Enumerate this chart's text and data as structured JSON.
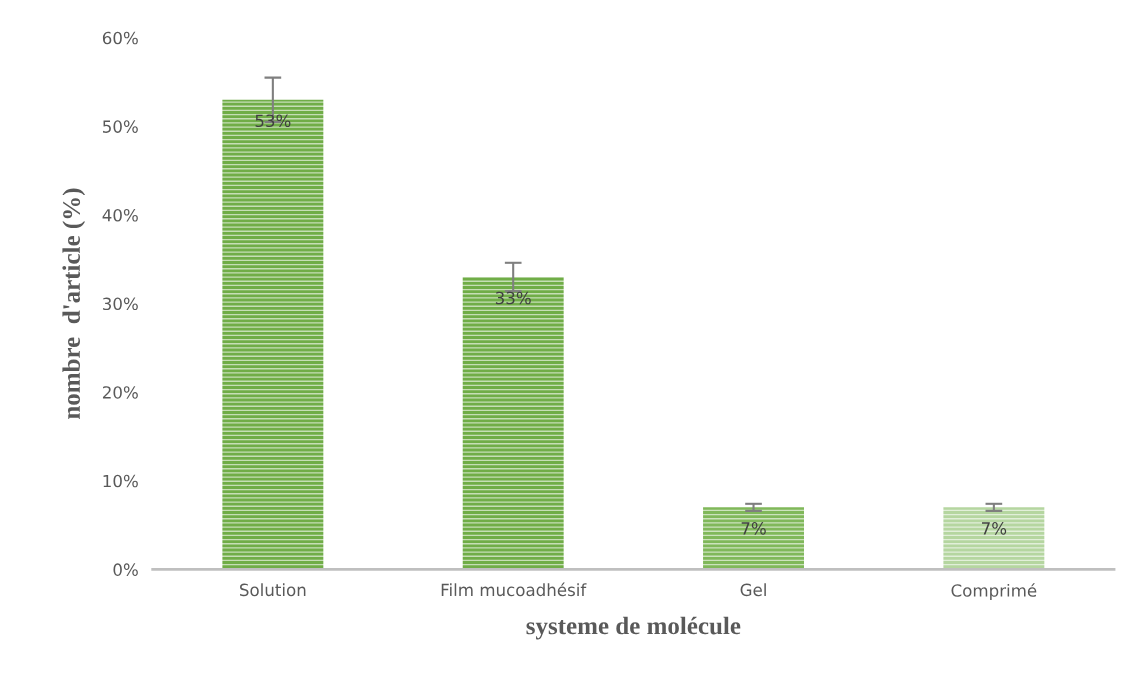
{
  "chart_data": {
    "type": "bar",
    "xlabel": "systeme de molécule",
    "ylabel": "nombre  d'article (%)",
    "categories": [
      "Solution",
      "Film mucoadhésif",
      "Gel",
      "Comprimé"
    ],
    "values": [
      53,
      33,
      7,
      7
    ],
    "errors": [
      2.5,
      1.6,
      0.4,
      0.4
    ],
    "colors": [
      "#70ad47",
      "#70ad47",
      "#80b85a",
      "#b5d6a0"
    ],
    "value_labels": [
      "53%",
      "33%",
      "7%",
      "7%"
    ],
    "ylim": [
      0,
      60
    ],
    "yticks": [
      {
        "value": 0,
        "label": "0%"
      },
      {
        "value": 10,
        "label": "10%"
      },
      {
        "value": 20,
        "label": "20%"
      },
      {
        "value": 30,
        "label": "30%"
      },
      {
        "value": 40,
        "label": "40%"
      },
      {
        "value": 50,
        "label": "50%"
      },
      {
        "value": 60,
        "label": "60%"
      }
    ],
    "grid": false,
    "legend": false
  }
}
